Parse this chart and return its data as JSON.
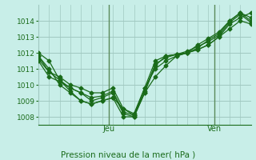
{
  "background_color": "#c8eee8",
  "grid_color": "#a0c8c0",
  "line_color": "#1a6b1a",
  "marker_color": "#1a6b1a",
  "title": "Pression niveau de la mer( hPa )",
  "ylim": [
    1007.5,
    1015.0
  ],
  "yticks": [
    1008,
    1009,
    1010,
    1011,
    1012,
    1013,
    1014
  ],
  "vline_positions": [
    0.33,
    0.83
  ],
  "vline_labels": [
    "Jeu",
    "Ven"
  ],
  "series": [
    [
      1012.0,
      1011.5,
      1010.3,
      1009.6,
      1009.0,
      1008.8,
      1009.0,
      1009.2,
      1008.0,
      1008.0,
      1009.5,
      1010.5,
      1011.2,
      1011.8,
      1012.0,
      1012.2,
      1012.5,
      1013.0,
      1013.8,
      1014.2,
      1014.5
    ],
    [
      1011.8,
      1011.0,
      1010.0,
      1009.5,
      1009.0,
      1008.8,
      1009.0,
      1009.2,
      1008.5,
      1008.1,
      1009.8,
      1011.0,
      1011.5,
      1011.8,
      1012.0,
      1012.2,
      1012.5,
      1013.0,
      1013.5,
      1014.0,
      1013.8
    ],
    [
      1011.5,
      1010.5,
      1010.2,
      1009.8,
      1009.5,
      1009.0,
      1009.2,
      1009.5,
      1008.2,
      1008.0,
      1009.5,
      1011.2,
      1011.8,
      1011.9,
      1012.0,
      1012.3,
      1012.8,
      1013.2,
      1014.0,
      1014.5,
      1014.2
    ],
    [
      1011.6,
      1010.8,
      1010.5,
      1010.0,
      1009.8,
      1009.5,
      1009.5,
      1009.8,
      1008.5,
      1008.2,
      1009.8,
      1011.5,
      1011.8,
      1011.9,
      1012.0,
      1012.5,
      1012.9,
      1013.3,
      1014.0,
      1014.5,
      1014.0
    ],
    [
      1011.8,
      1010.8,
      1010.3,
      1009.8,
      1009.5,
      1009.2,
      1009.3,
      1009.6,
      1008.3,
      1008.1,
      1009.6,
      1011.3,
      1011.7,
      1011.9,
      1012.1,
      1012.4,
      1012.7,
      1013.1,
      1013.9,
      1014.4,
      1013.9
    ]
  ]
}
